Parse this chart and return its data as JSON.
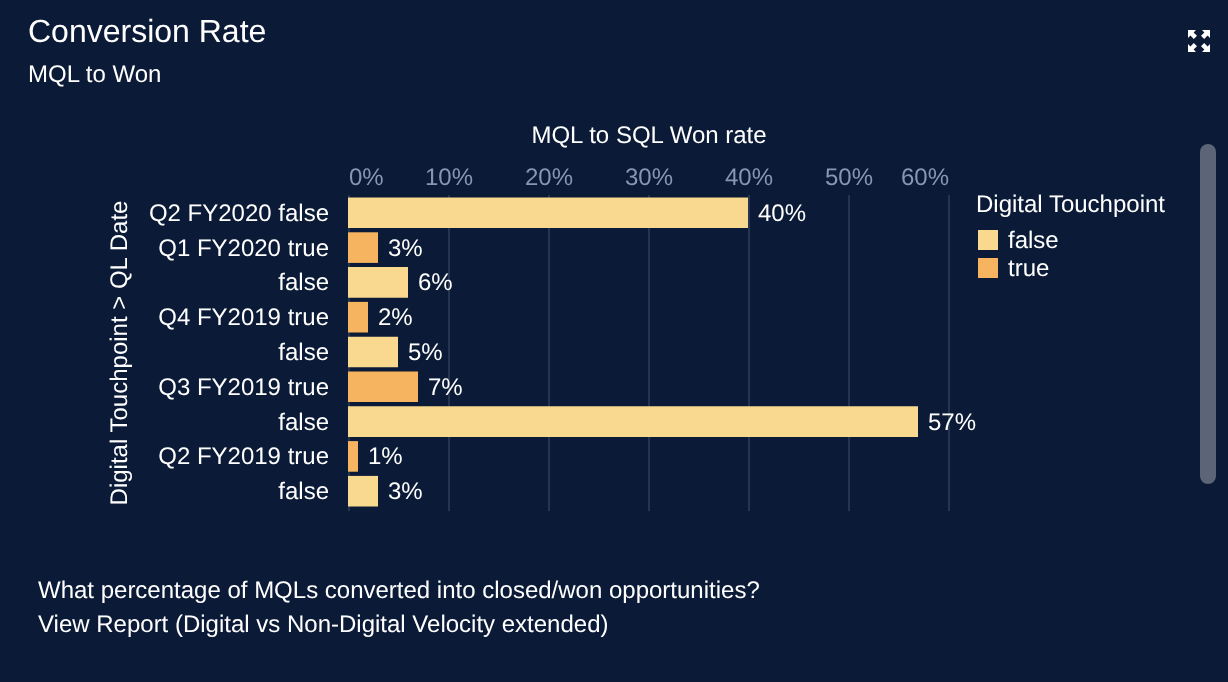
{
  "chart_data": {
    "type": "bar",
    "orientation": "horizontal",
    "title": "Conversion Rate",
    "subtitle": "MQL to Won",
    "xlabel": "MQL to SQL Won rate",
    "ylabel": "Digital Touchpoint > QL Date",
    "legend_title": "Digital Touchpoint",
    "legend": "top right",
    "grid": "x",
    "categories": [
      "Q2 FY2020 false",
      "Q1 FY2020 true",
      "false",
      "Q4 FY2019 true",
      "false",
      "Q3 FY2019 true",
      "false",
      "Q2 FY2019 true",
      "false"
    ],
    "series": [
      {
        "name": "false",
        "color": "#f8d98f",
        "values": [
          40,
          null,
          6,
          null,
          5,
          null,
          57,
          null,
          3
        ],
        "value_labels": [
          "40%",
          null,
          "6%",
          null,
          "5%",
          null,
          "57%",
          null,
          "3%"
        ]
      },
      {
        "name": "true",
        "color": "#f6b460",
        "values": [
          null,
          3,
          null,
          2,
          null,
          7,
          null,
          1,
          null
        ],
        "value_labels": [
          null,
          "3%",
          null,
          "2%",
          null,
          "7%",
          null,
          "1%",
          null
        ]
      }
    ],
    "xlim": [
      0,
      60
    ],
    "xticks": [
      {
        "value": 0,
        "label": "0%"
      },
      {
        "value": 10,
        "label": "10%"
      },
      {
        "value": 20,
        "label": "20%"
      },
      {
        "value": 30,
        "label": "30%"
      },
      {
        "value": 40,
        "label": "40%"
      },
      {
        "value": 50,
        "label": "50%"
      },
      {
        "value": 60,
        "label": "60%"
      }
    ],
    "annotations": [
      "What percentage of MQLs converted into closed/won opportunities?",
      "View Report (Digital vs Non-Digital Velocity extended)"
    ]
  }
}
